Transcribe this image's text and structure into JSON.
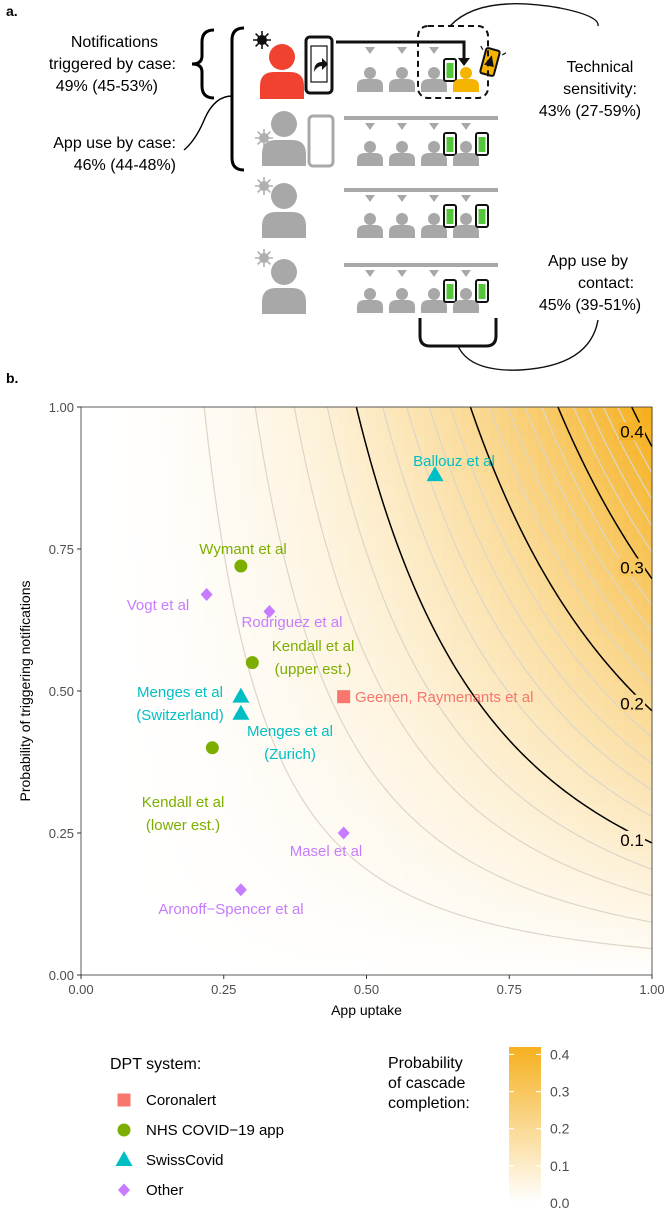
{
  "colors": {
    "red": "#F8766D",
    "green": "#7CAE00",
    "teal": "#00BFC4",
    "purple": "#C77CFF",
    "case_red": "#F0422E",
    "contact_yellow": "#F5B400",
    "gray": "#A8A8A8",
    "phone_green": "#55C63A",
    "fill_low": "#FFFFFF",
    "fill_high": "#F5B01E",
    "contour_major": "#000000",
    "contour_minor": "#DCD6C8"
  },
  "panel_a": {
    "label": "a.",
    "notif_label_1": "Notifications",
    "notif_label_2": "triggered by case:",
    "notif_label_3": "49% (45-53%)",
    "appuse_case_1": "App use by case:",
    "appuse_case_2": "46% (44-48%)",
    "tech_1": "Technical",
    "tech_2": "sensitivity:",
    "tech_3": "43% (27-59%)",
    "appuse_contact_1": "App use by",
    "appuse_contact_2": "contact:",
    "appuse_contact_3": "45% (39-51%)",
    "icons": [
      "virus-icon",
      "case-person-icon",
      "phone-share-icon",
      "contact-person-icon",
      "phone-icon",
      "alert-phone-icon"
    ]
  },
  "panel_b": {
    "label": "b."
  },
  "chart_data": {
    "type": "scatter",
    "background": "contour",
    "surface_formula": "probability = app_uptake^2 * notification_probability * 0.43",
    "xlabel": "App uptake",
    "ylabel": "Probability of triggering notifications",
    "xlim": [
      0,
      1
    ],
    "ylim": [
      0,
      1
    ],
    "xticks": [
      "0.00",
      "0.25",
      "0.50",
      "0.75",
      "1.00"
    ],
    "yticks": [
      "0.00",
      "0.25",
      "0.50",
      "0.75",
      "1.00"
    ],
    "contour_levels_labeled": [
      "0.1",
      "0.2",
      "0.3",
      "0.4"
    ],
    "contour_levels_minor_step": 0.02,
    "grid": false,
    "points": [
      {
        "label": "Ballouz et al",
        "x": 0.62,
        "y": 0.88,
        "system": "SwissCovid"
      },
      {
        "label": "Wymant et al",
        "x": 0.28,
        "y": 0.72,
        "system": "NHS COVID−19 app"
      },
      {
        "label": "Vogt et al",
        "x": 0.22,
        "y": 0.67,
        "system": "Other"
      },
      {
        "label": "Rodriguez et al",
        "x": 0.33,
        "y": 0.64,
        "system": "Other"
      },
      {
        "label": "Kendall et al (upper est.)",
        "x": 0.3,
        "y": 0.55,
        "system": "NHS COVID−19 app"
      },
      {
        "label": "Menges et al (Switzerland)",
        "x": 0.28,
        "y": 0.49,
        "system": "SwissCovid"
      },
      {
        "label": "Menges et al (Zurich)",
        "x": 0.28,
        "y": 0.46,
        "system": "SwissCovid"
      },
      {
        "label": "Geenen, Raymenants et al",
        "x": 0.46,
        "y": 0.49,
        "system": "Coronalert"
      },
      {
        "label": "Kendall et al (lower est.)",
        "x": 0.23,
        "y": 0.4,
        "system": "NHS COVID−19 app"
      },
      {
        "label": "Masel et al",
        "x": 0.46,
        "y": 0.25,
        "system": "Other"
      },
      {
        "label": "Aronoff−Spencer et al",
        "x": 0.28,
        "y": 0.15,
        "system": "Other"
      }
    ],
    "point_labels": [
      {
        "lines": [
          "Ballouz et al"
        ],
        "system": "SwissCovid"
      },
      {
        "lines": [
          "Wymant et al"
        ],
        "system": "NHS COVID−19 app"
      },
      {
        "lines": [
          "Vogt et al"
        ],
        "system": "Other"
      },
      {
        "lines": [
          "Rodriguez et al"
        ],
        "system": "Other"
      },
      {
        "lines": [
          "Kendall et al",
          "(upper est.)"
        ],
        "system": "NHS COVID−19 app"
      },
      {
        "lines": [
          "Menges et al",
          "(Switzerland)"
        ],
        "system": "SwissCovid"
      },
      {
        "lines": [
          "Menges et al",
          "(Zurich)"
        ],
        "system": "SwissCovid"
      },
      {
        "lines": [
          "Geenen, Raymenants et al"
        ],
        "system": "Coronalert"
      },
      {
        "lines": [
          "Kendall et al",
          "(lower est.)"
        ],
        "system": "NHS COVID−19 app"
      },
      {
        "lines": [
          "Masel et al"
        ],
        "system": "Other"
      },
      {
        "lines": [
          "Aronoff−Spencer et al"
        ],
        "system": "Other"
      }
    ],
    "legend": {
      "title": "DPT system:",
      "placement": "bottom-left",
      "items": [
        {
          "name": "Coronalert",
          "shape": "square"
        },
        {
          "name": "NHS COVID−19 app",
          "shape": "circle"
        },
        {
          "name": "SwissCovid",
          "shape": "triangle"
        },
        {
          "name": "Other",
          "shape": "diamond"
        }
      ]
    },
    "colorbar": {
      "title": [
        "Probability",
        "of cascade",
        "completion:"
      ],
      "placement": "bottom-right",
      "range": [
        0,
        0.42
      ],
      "ticks": [
        "0.4",
        "0.3",
        "0.2",
        "0.1",
        "0.0"
      ]
    }
  }
}
